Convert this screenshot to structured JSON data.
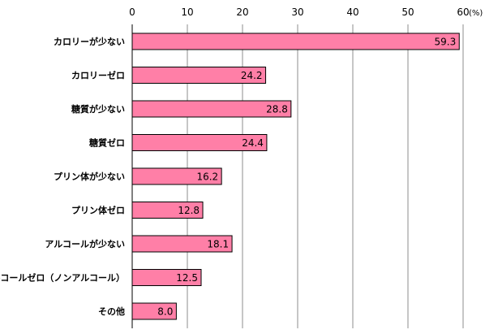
{
  "chart_data": {
    "type": "bar",
    "orientation": "horizontal",
    "categories": [
      "カロリーが少ない",
      "カロリーゼロ",
      "糖質が少ない",
      "糖質ゼロ",
      "プリン体が少ない",
      "プリン体ゼロ",
      "アルコールが少ない",
      "アルコールゼロ（ノンアルコール）",
      "その他"
    ],
    "values": [
      59.3,
      24.2,
      28.8,
      24.4,
      16.2,
      12.8,
      18.1,
      12.5,
      8.0
    ],
    "value_labels": [
      "59.3",
      "24.2",
      "28.8",
      "24.4",
      "16.2",
      "12.8",
      "18.1",
      "12.5",
      "8.0"
    ],
    "xlim": [
      0,
      60
    ],
    "x_ticks": [
      0,
      10,
      20,
      30,
      40,
      50,
      60
    ],
    "x_tick_labels": [
      "0",
      "10",
      "20",
      "30",
      "40",
      "50",
      "60"
    ],
    "unit": "(%)",
    "axis_position": "top",
    "grid": true,
    "bar_color": "#ff7fa7",
    "bar_edge_color": "#000000",
    "grid_color": "#8c8c8c"
  }
}
